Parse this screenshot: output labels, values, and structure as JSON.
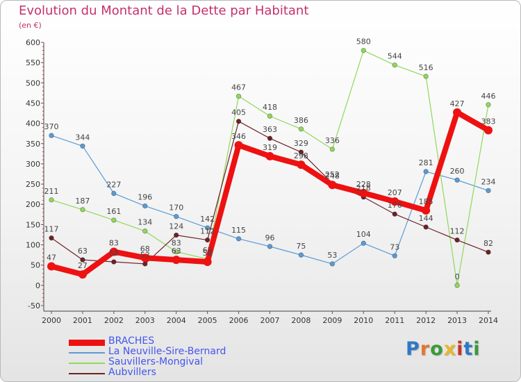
{
  "title": "Evolution du Montant de la Dette par Habitant",
  "subtitle": "(en €)",
  "logo": {
    "text": "Proxiti",
    "colors": [
      "#2f78c8",
      "#e8752a",
      "#3a9a3a",
      "#e8b82a",
      "#c8342a",
      "#2f78c8",
      "#3a9a3a"
    ]
  },
  "chart_data": {
    "type": "line",
    "x": [
      "2000",
      "2001",
      "2002",
      "2003",
      "2004",
      "2005",
      "2006",
      "2007",
      "2008",
      "2009",
      "2010",
      "2011",
      "2012",
      "2013",
      "2014"
    ],
    "ylim": [
      -50,
      600
    ],
    "yticks": [
      "-50",
      "0",
      "50",
      "100",
      "150",
      "200",
      "250",
      "300",
      "350",
      "400",
      "450",
      "500",
      "550",
      "600"
    ],
    "grid": false,
    "legend_position": "bottom-left",
    "series": [
      {
        "name": "BRACHES",
        "color": "#ee1111",
        "values": [
          47,
          27,
          83,
          68,
          63,
          58,
          346,
          319,
          298,
          248,
          228,
          207,
          185,
          427,
          383
        ],
        "labels": [
          "47",
          "27",
          "83",
          "68",
          "63",
          "58",
          "346",
          "319",
          "298",
          "248",
          "228",
          "207",
          "185",
          "427",
          "383"
        ]
      },
      {
        "name": "La Neuville-Sire-Bernard",
        "color": "#5b9bd5",
        "values": [
          370,
          344,
          227,
          196,
          170,
          142,
          115,
          96,
          75,
          53,
          104,
          73,
          281,
          260,
          234
        ],
        "labels": [
          "370",
          "344",
          "227",
          "196",
          "170",
          "142",
          "115",
          "96",
          "75",
          "53",
          "104",
          "73",
          "281",
          "260",
          "234"
        ]
      },
      {
        "name": "Sauvillers-Mongival",
        "color": "#90d85a",
        "values": [
          211,
          187,
          161,
          134,
          83,
          65,
          467,
          418,
          386,
          336,
          580,
          544,
          516,
          0,
          446
        ],
        "labels": [
          "211",
          "187",
          "161",
          "134",
          "83",
          "65",
          "467",
          "418",
          "386",
          "336",
          "580",
          "544",
          "516",
          "0",
          "446"
        ]
      },
      {
        "name": "Aubvillers",
        "color": "#6e2126",
        "values": [
          117,
          63,
          58,
          53,
          124,
          112,
          405,
          363,
          329,
          252,
          218,
          176,
          144,
          112,
          82
        ],
        "labels": [
          "117",
          "63",
          "58",
          "53",
          "124",
          "112",
          "405",
          "363",
          "329",
          "252",
          "218",
          "176",
          "144",
          "112",
          "82"
        ]
      }
    ]
  }
}
